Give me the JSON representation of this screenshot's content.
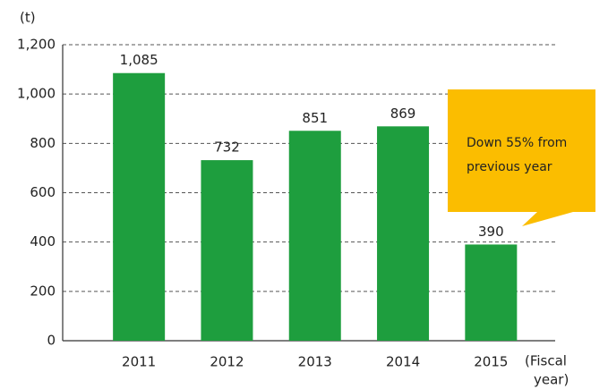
{
  "chart_data": {
    "type": "bar",
    "y_label": "(t)",
    "x_label": [
      "(Fiscal",
      "year)"
    ],
    "categories": [
      "2011",
      "2012",
      "2013",
      "2014",
      "2015"
    ],
    "values": [
      1085,
      732,
      851,
      869,
      390
    ],
    "value_labels": [
      "1,085",
      "732",
      "851",
      "869",
      "390"
    ],
    "color": "#1e9e3e",
    "ylim": [
      0,
      1200
    ],
    "yticks": [
      0,
      200,
      400,
      600,
      800,
      {
        "value": 1000,
        "label": "1,000"
      },
      {
        "value": 1200,
        "label": "1,200"
      }
    ],
    "grid": true,
    "annotation": [
      "Down 55% from",
      "previous year"
    ]
  }
}
